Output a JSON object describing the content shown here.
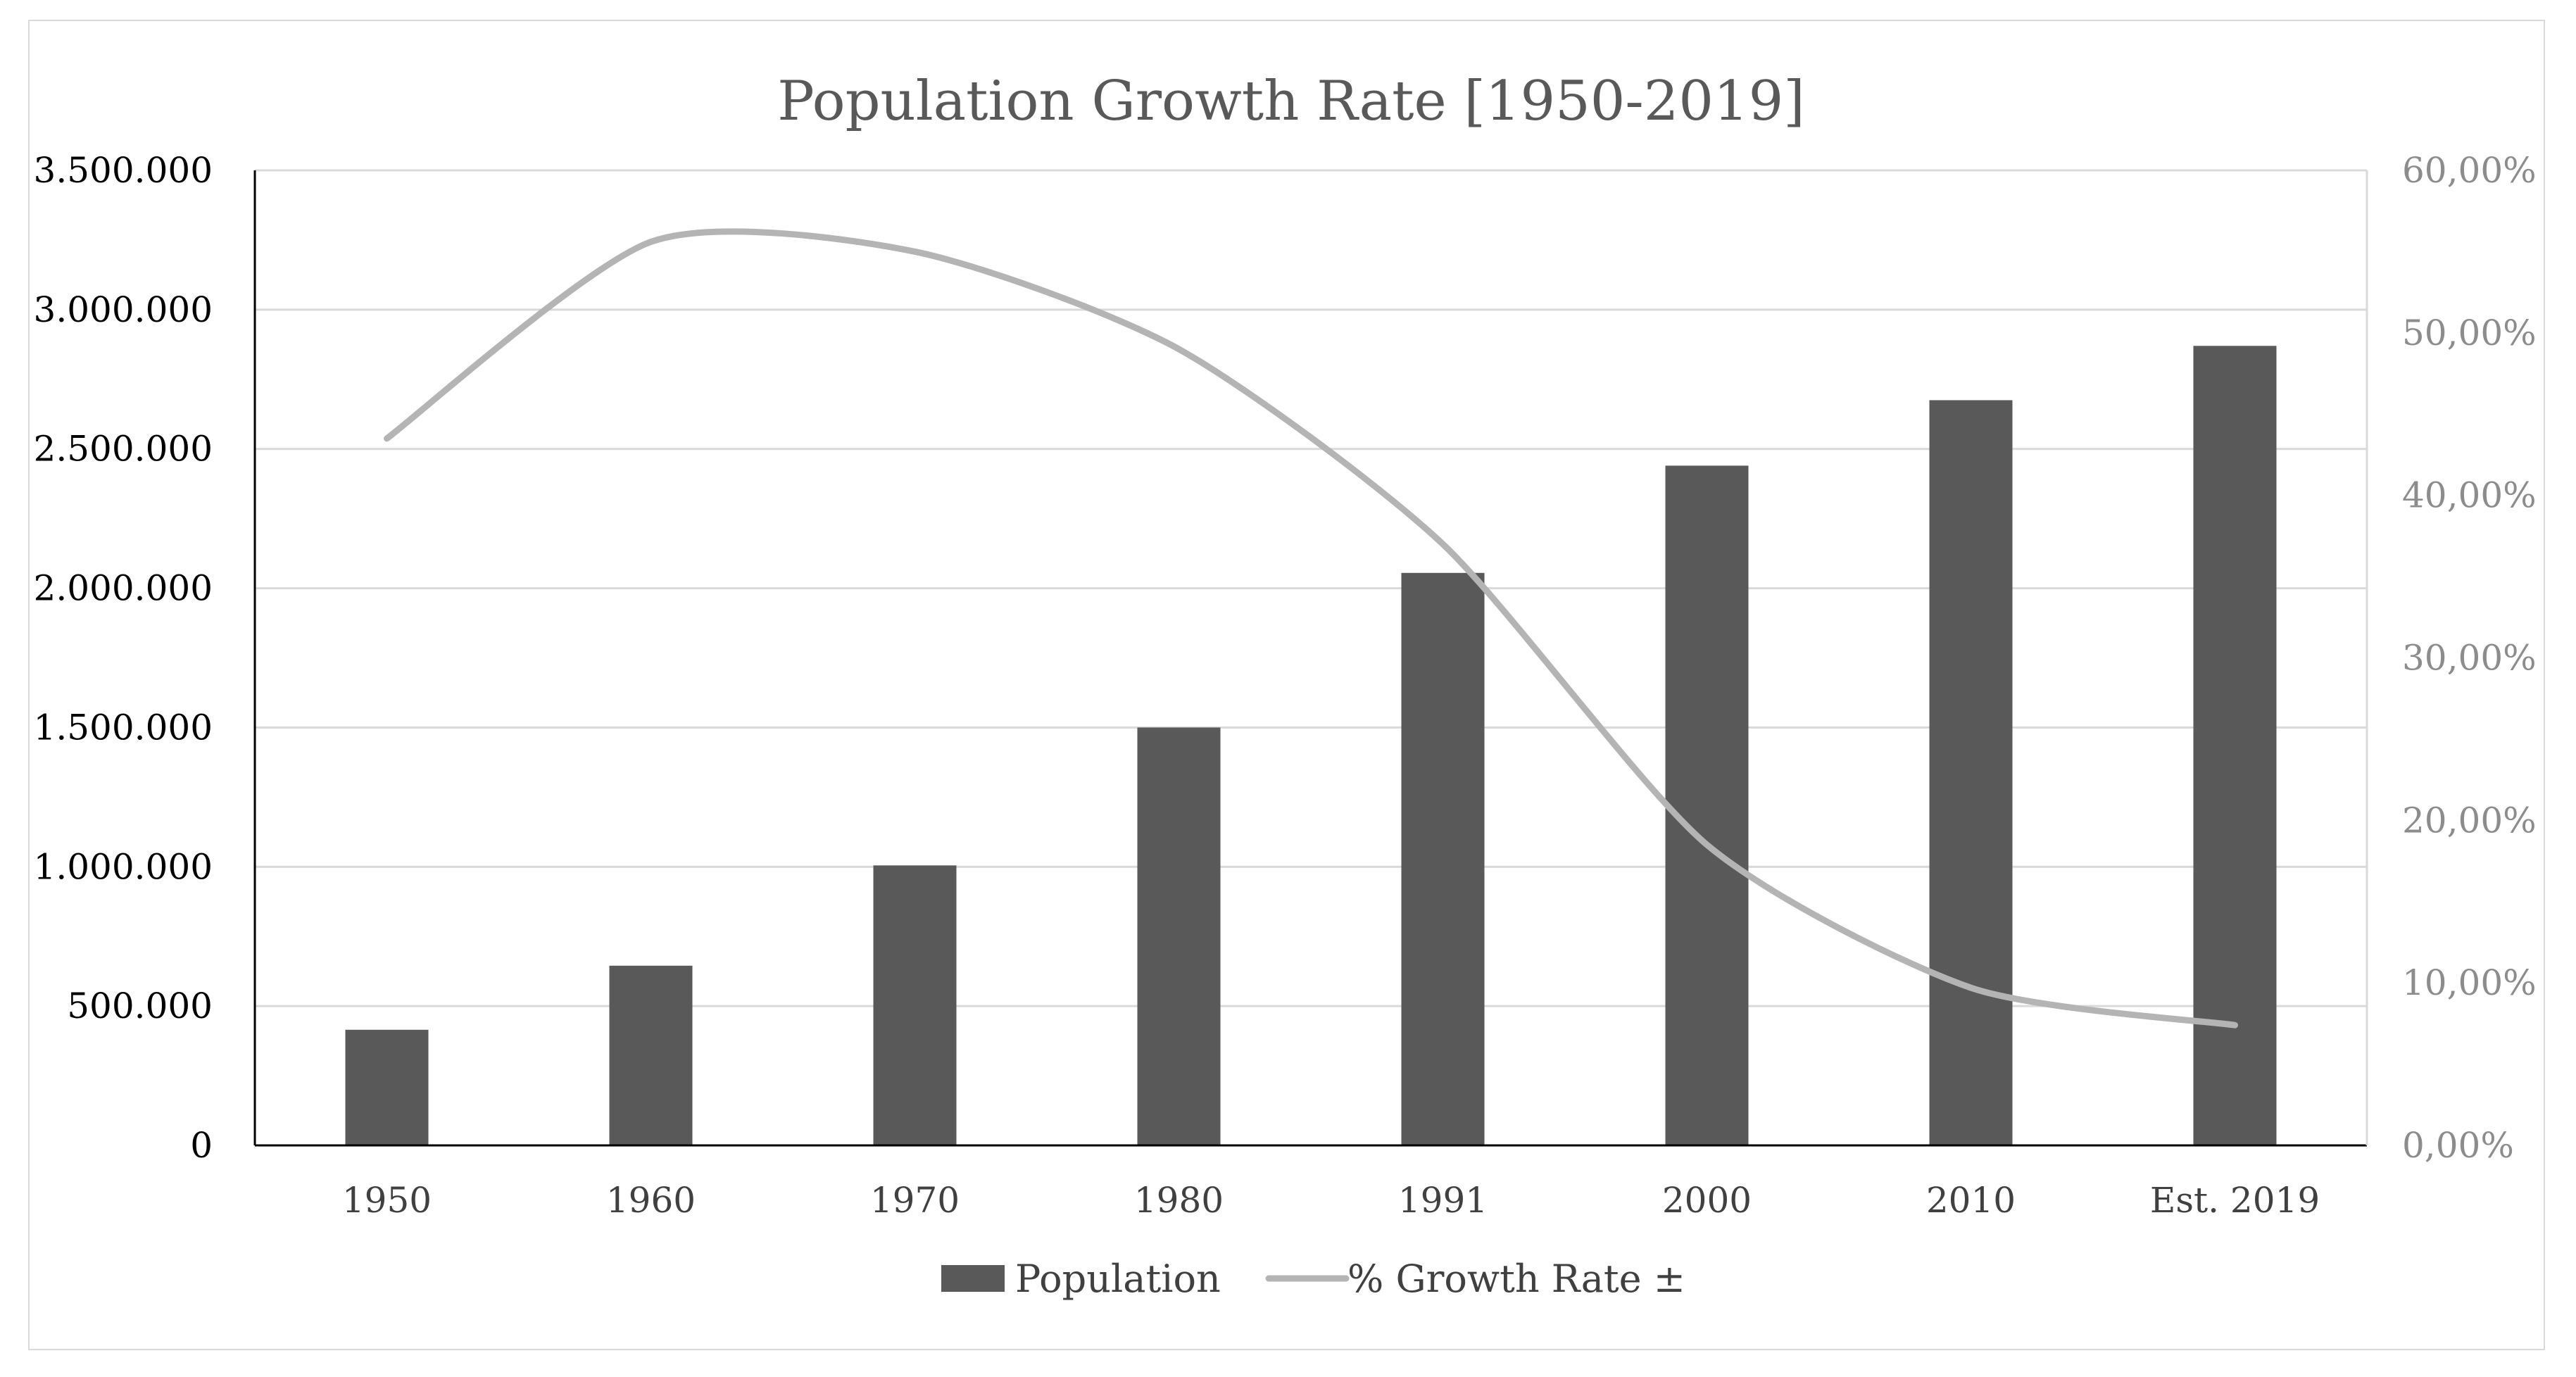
{
  "chart_data": {
    "type": "bar",
    "title": "Population Growth Rate [1950-2019]",
    "categories": [
      "1950",
      "1960",
      "1970",
      "1980",
      "1991",
      "2000",
      "2010",
      "Est. 2019"
    ],
    "series": [
      {
        "name": "Population",
        "type": "bar",
        "axis": "left",
        "color": "#595959",
        "values": [
          415000,
          645000,
          1005000,
          1500000,
          2055000,
          2440000,
          2675000,
          2870000
        ]
      },
      {
        "name": "% Growth Rate ±",
        "type": "line",
        "axis": "right",
        "color": "#b4b4b4",
        "values": [
          43.5,
          55.6,
          55.0,
          49.0,
          37.0,
          18.5,
          9.7,
          7.4
        ]
      }
    ],
    "y_left": {
      "ylim": [
        0,
        3500000
      ],
      "ticks": [
        0,
        500000,
        1000000,
        1500000,
        2000000,
        2500000,
        3000000,
        3500000
      ],
      "tick_labels": [
        "0",
        "500.000",
        "1.000.000",
        "1.500.000",
        "2.000.000",
        "2.500.000",
        "3.000.000",
        "3.500.000"
      ]
    },
    "y_right": {
      "ylim": [
        0,
        60
      ],
      "ticks": [
        0,
        10,
        20,
        30,
        40,
        50,
        60
      ],
      "tick_labels": [
        "0,00%",
        "10,00%",
        "20,00%",
        "30,00%",
        "40,00%",
        "50,00%",
        "60,00%"
      ]
    },
    "xlabel": "",
    "ylabel": "",
    "grid": true,
    "legend": "bottom",
    "colors": {
      "grid": "#d9d9d9",
      "axis": "#000000"
    }
  }
}
